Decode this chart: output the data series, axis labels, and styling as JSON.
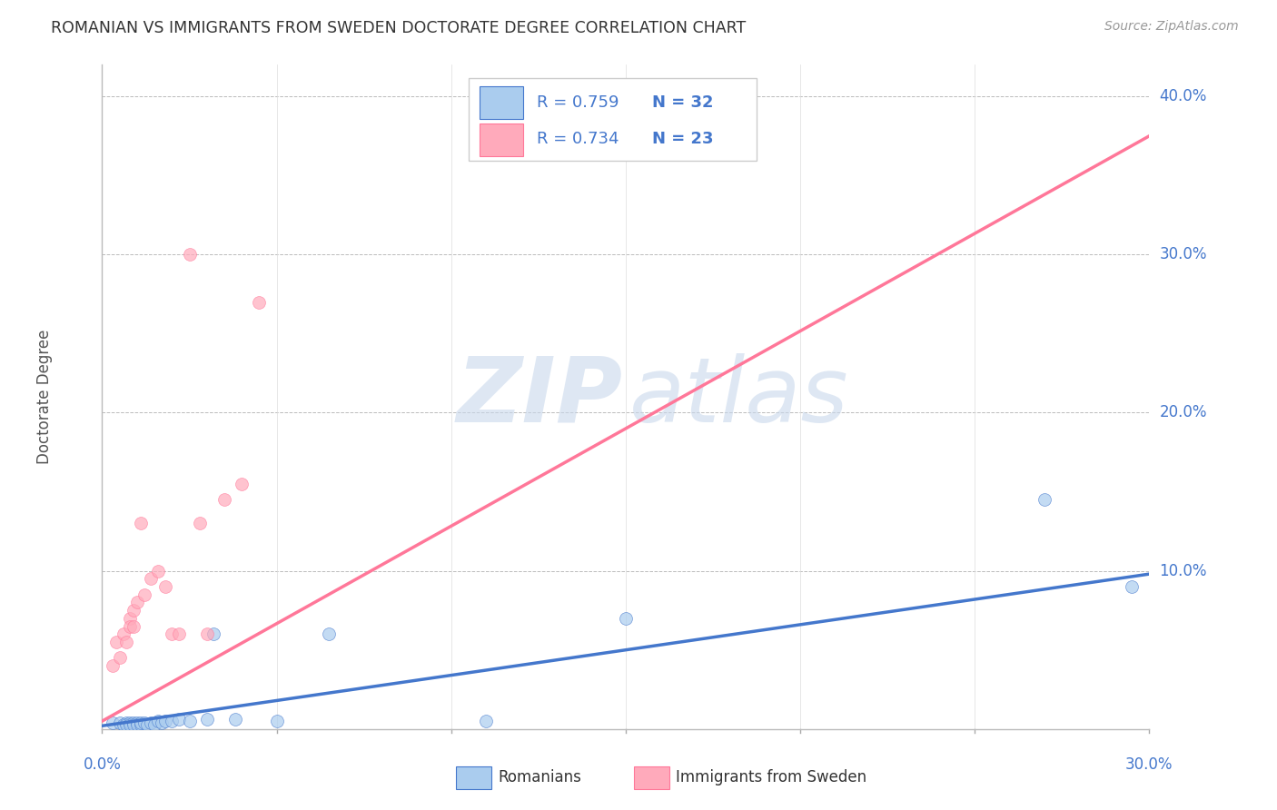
{
  "title": "ROMANIAN VS IMMIGRANTS FROM SWEDEN DOCTORATE DEGREE CORRELATION CHART",
  "source": "Source: ZipAtlas.com",
  "ylabel": "Doctorate Degree",
  "xlim": [
    0.0,
    0.3
  ],
  "ylim": [
    0.0,
    0.42
  ],
  "xticks": [
    0.0,
    0.05,
    0.1,
    0.15,
    0.2,
    0.25,
    0.3
  ],
  "yticks": [
    0.0,
    0.1,
    0.2,
    0.3,
    0.4
  ],
  "xtick_labels": [
    "0.0%",
    "",
    "",
    "",
    "",
    "",
    "30.0%"
  ],
  "ytick_labels": [
    "",
    "10.0%",
    "20.0%",
    "30.0%",
    "40.0%"
  ],
  "blue_scatter_x": [
    0.003,
    0.005,
    0.006,
    0.007,
    0.007,
    0.008,
    0.008,
    0.009,
    0.009,
    0.01,
    0.01,
    0.011,
    0.011,
    0.012,
    0.013,
    0.014,
    0.015,
    0.016,
    0.017,
    0.018,
    0.02,
    0.022,
    0.025,
    0.03,
    0.032,
    0.038,
    0.05,
    0.065,
    0.11,
    0.15,
    0.27,
    0.295
  ],
  "blue_scatter_y": [
    0.004,
    0.004,
    0.003,
    0.004,
    0.003,
    0.004,
    0.003,
    0.004,
    0.003,
    0.004,
    0.003,
    0.003,
    0.004,
    0.004,
    0.003,
    0.004,
    0.003,
    0.005,
    0.004,
    0.005,
    0.005,
    0.006,
    0.005,
    0.006,
    0.06,
    0.006,
    0.005,
    0.06,
    0.005,
    0.07,
    0.145,
    0.09
  ],
  "pink_scatter_x": [
    0.003,
    0.004,
    0.005,
    0.006,
    0.007,
    0.008,
    0.008,
    0.009,
    0.009,
    0.01,
    0.011,
    0.012,
    0.014,
    0.016,
    0.018,
    0.02,
    0.022,
    0.025,
    0.028,
    0.03,
    0.035,
    0.04,
    0.045
  ],
  "pink_scatter_y": [
    0.04,
    0.055,
    0.045,
    0.06,
    0.055,
    0.07,
    0.065,
    0.065,
    0.075,
    0.08,
    0.13,
    0.085,
    0.095,
    0.1,
    0.09,
    0.06,
    0.06,
    0.3,
    0.13,
    0.06,
    0.145,
    0.155,
    0.27
  ],
  "blue_R": 0.759,
  "blue_N": 32,
  "pink_R": 0.734,
  "pink_N": 23,
  "blue_line_x": [
    0.0,
    0.3
  ],
  "blue_line_y": [
    0.002,
    0.098
  ],
  "pink_line_x": [
    0.0,
    0.3
  ],
  "pink_line_y": [
    0.005,
    0.375
  ],
  "blue_color": "#AACCEE",
  "pink_color": "#FFAABB",
  "blue_line_color": "#4477CC",
  "pink_line_color": "#FF7799",
  "title_color": "#333333",
  "axis_label_color": "#555555",
  "tick_label_color": "#4477CC",
  "grid_color": "#BBBBBB",
  "source_color": "#999999"
}
